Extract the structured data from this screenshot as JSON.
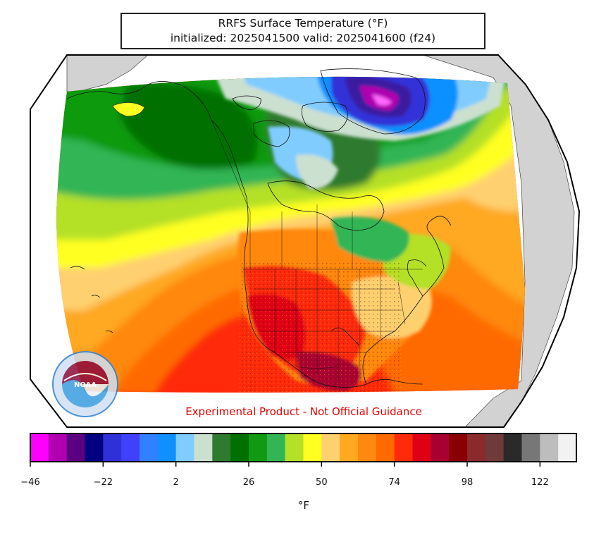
{
  "map": {
    "title": "RRFS Surface Temperature (°F)",
    "subtitle": "initialized: 2025041500 valid: 2025041600 (f24)",
    "disclaimer": "Experimental Product - Not Official Guidance",
    "projection": "lambert-conformal-north-america",
    "logo": {
      "icon": "noaa-logo",
      "text": "NOAA"
    }
  },
  "colorbar": {
    "unit": "°F",
    "range": [
      -46,
      134
    ],
    "step": 6,
    "colors": [
      "#ff00ff",
      "#b000b0",
      "#5a0080",
      "#000080",
      "#3030d8",
      "#4040ff",
      "#3080ff",
      "#1090ff",
      "#80ccff",
      "#cce0d0",
      "#2e7a2e",
      "#007000",
      "#119a11",
      "#33b555",
      "#b4e028",
      "#ffff20",
      "#ffd070",
      "#ffa820",
      "#ff8810",
      "#ff6a00",
      "#ff2a0a",
      "#e00015",
      "#a80030",
      "#880000",
      "#8a2a2a",
      "#6e3a3a",
      "#2a2a2a",
      "#777777",
      "#bdbdbd",
      "#f2f2f2"
    ],
    "ticks": [
      "−46",
      "−22",
      "2",
      "26",
      "50",
      "74",
      "98",
      "122"
    ]
  }
}
